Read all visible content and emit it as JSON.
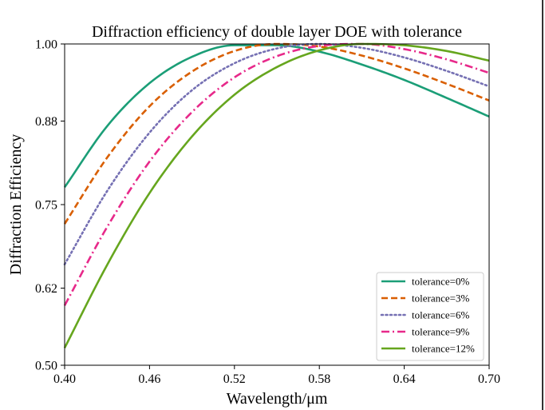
{
  "chart_data": {
    "type": "line",
    "title": "Diffraction efficiency of double layer DOE with tolerance",
    "xlabel": "Wavelength/μm",
    "ylabel": "Diffraction Efficiency",
    "xlim": [
      0.4,
      0.7
    ],
    "ylim": [
      0.5,
      1.0
    ],
    "xticks": [
      "0.40",
      "0.46",
      "0.52",
      "0.58",
      "0.64",
      "0.70"
    ],
    "yticks": [
      "0.50",
      "0.62",
      "0.75",
      "0.88",
      "1.00"
    ],
    "grid": false,
    "legend_position": "lower-right",
    "x": [
      0.4,
      0.43,
      0.46,
      0.49,
      0.52,
      0.55,
      0.58,
      0.61,
      0.64,
      0.67,
      0.7
    ],
    "series": [
      {
        "name": "tolerance=0%",
        "color": "#1b9e77",
        "style": "solid",
        "values": [
          0.777,
          0.872,
          0.939,
          0.98,
          0.998,
          0.998,
          0.988,
          0.968,
          0.944,
          0.916,
          0.887
        ]
      },
      {
        "name": "tolerance=3%",
        "color": "#d95f02",
        "style": "dashed",
        "values": [
          0.72,
          0.823,
          0.903,
          0.957,
          0.989,
          1.0,
          0.996,
          0.982,
          0.962,
          0.938,
          0.912
        ]
      },
      {
        "name": "tolerance=6%",
        "color": "#7570b3",
        "style": "dotted",
        "values": [
          0.657,
          0.771,
          0.862,
          0.928,
          0.97,
          0.993,
          1.0,
          0.994,
          0.979,
          0.958,
          0.934
        ]
      },
      {
        "name": "tolerance=9%",
        "color": "#e7298a",
        "style": "dashdot",
        "values": [
          0.593,
          0.715,
          0.817,
          0.894,
          0.948,
          0.981,
          0.997,
          1.0,
          0.992,
          0.976,
          0.955
        ]
      },
      {
        "name": "tolerance=12%",
        "color": "#66a61e",
        "style": "solid",
        "values": [
          0.527,
          0.656,
          0.768,
          0.856,
          0.921,
          0.964,
          0.99,
          1.0,
          0.998,
          0.989,
          0.974
        ]
      }
    ]
  }
}
